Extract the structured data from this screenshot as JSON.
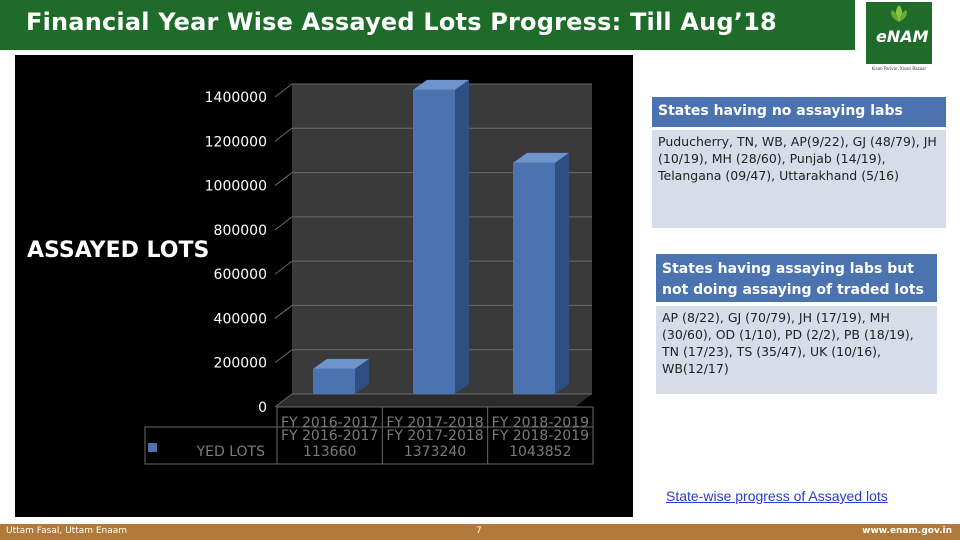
{
  "slide": {
    "title": "Financial Year Wise Assayed Lots Progress: Till Aug’18",
    "logo_text": "eNAM",
    "logo_tagline": "Kisan Parivar, Kisan Bazaar",
    "link_text": "State-wise progress of Assayed lots",
    "footer_left": "Uttam Fasal, Uttam Enaam",
    "footer_page": "7",
    "footer_right": "www.enam.gov.in",
    "colors": {
      "title_bar": "#1e6b2a",
      "bar": "#4a73b0",
      "info_head": "#4a73b0",
      "info_body": "#d6dce8",
      "footer": "#b07a3a"
    }
  },
  "info": {
    "no_labs_heading": "States having no assaying labs",
    "no_labs_text": "Puducherry, TN, WB, AP(9/22), GJ (48/79), JH (10/19), MH (28/60), Punjab (14/19), Telangana (09/47), Uttarakhand (5/16)",
    "labs_heading": "States having assaying labs  but not doing assaying of traded lots",
    "labs_text": "AP (8/22), GJ (70/79), JH (17/19), MH (30/60), OD (1/10), PD (2/2), PB (18/19), TN (17/23), TS (35/47), UK (10/16), WB(12/17)"
  },
  "chart_data": {
    "type": "bar",
    "ylabel": "ASSAYED LOTS",
    "categories": [
      "FY 2016-2017",
      "FY 2017-2018",
      "FY 2018-2019"
    ],
    "series": [
      {
        "name": "ASSAYED LOTS",
        "values": [
          113660,
          1373240,
          1043852
        ]
      }
    ],
    "value_labels": [
      "113660",
      "1373240",
      "1043852"
    ],
    "legend_text": "YED LOTS",
    "ylim": [
      0,
      1400000
    ],
    "yticks": [
      "0",
      "200000",
      "400000",
      "600000",
      "800000",
      "1000000",
      "1200000",
      "1400000"
    ],
    "grid": true,
    "legend": "bottom-left"
  }
}
